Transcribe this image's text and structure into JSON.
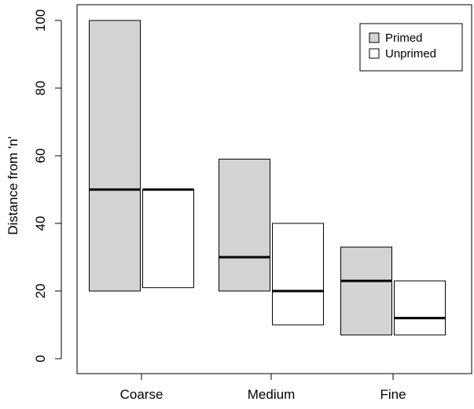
{
  "chart_data": {
    "type": "box",
    "title": "",
    "xlabel": "",
    "ylabel": "Distance from 'n'",
    "categories": [
      "Coarse",
      "Medium",
      "Fine"
    ],
    "ylim": [
      0,
      100
    ],
    "yticks": [
      0,
      20,
      40,
      60,
      80,
      100
    ],
    "grid": false,
    "legend": {
      "placement": "top-right"
    },
    "series": [
      {
        "name": "Primed",
        "color": "#d3d3d3",
        "boxes": [
          {
            "category": "Coarse",
            "lower": 20,
            "median": 50,
            "upper": 100
          },
          {
            "category": "Medium",
            "lower": 20,
            "median": 30,
            "upper": 59
          },
          {
            "category": "Fine",
            "lower": 7,
            "median": 23,
            "upper": 33
          }
        ]
      },
      {
        "name": "Unprimed",
        "color": "#ffffff",
        "boxes": [
          {
            "category": "Coarse",
            "lower": 21,
            "median": 50,
            "upper": 50
          },
          {
            "category": "Medium",
            "lower": 10,
            "median": 20,
            "upper": 40
          },
          {
            "category": "Fine",
            "lower": 7,
            "median": 12,
            "upper": 23
          }
        ]
      }
    ]
  }
}
